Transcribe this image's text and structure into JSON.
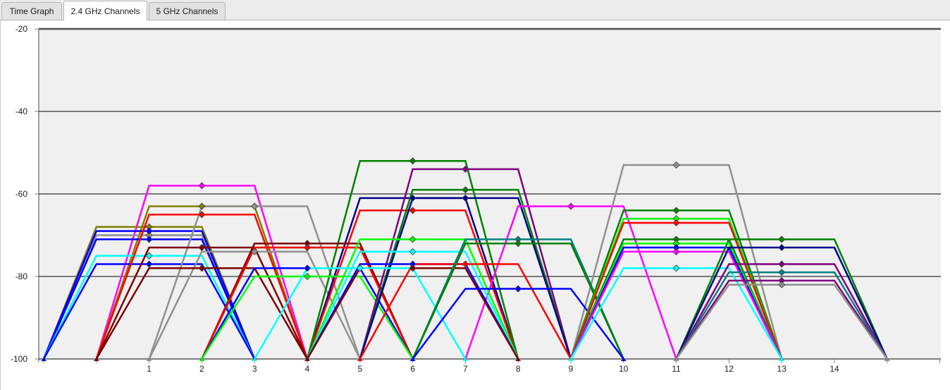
{
  "tabs": [
    {
      "label": "Time Graph",
      "active": false
    },
    {
      "label": "2.4 GHz Channels",
      "active": true
    },
    {
      "label": "5 GHz Channels",
      "active": false
    }
  ],
  "chart_data": {
    "type": "line",
    "title": "",
    "xlabel": "",
    "ylabel": "",
    "x_ticks": [
      1,
      2,
      3,
      4,
      5,
      6,
      7,
      8,
      9,
      10,
      11,
      12,
      13,
      14
    ],
    "y_ticks": [
      -20,
      -40,
      -60,
      -80,
      -100
    ],
    "ylim": [
      -100,
      -20
    ],
    "xlim": [
      -1,
      16
    ],
    "grid": "horizontal",
    "background_color": "#f0f0f0",
    "series": [
      {
        "color": "#ff00ff",
        "level": -58,
        "center": 2
      },
      {
        "color": "#808000",
        "level": -63,
        "center": 2
      },
      {
        "color": "#808000",
        "level": -68,
        "center": 1
      },
      {
        "color": "#909090",
        "level": -70,
        "center": 1
      },
      {
        "color": "#0000ff",
        "level": -69,
        "center": 1
      },
      {
        "color": "#0000ff",
        "level": -71,
        "center": 1
      },
      {
        "color": "#00ff00",
        "level": -75,
        "center": 1
      },
      {
        "color": "#00ffff",
        "level": -75,
        "center": 1
      },
      {
        "color": "#0000ff",
        "level": -77,
        "center": 1
      },
      {
        "color": "#909090",
        "level": -63,
        "center": 3
      },
      {
        "color": "#ff0000",
        "level": -65,
        "center": 2
      },
      {
        "color": "#909090",
        "level": -74,
        "center": 3
      },
      {
        "color": "#7f0000",
        "level": -73,
        "center": 2
      },
      {
        "color": "#7f0000",
        "level": -78,
        "center": 2
      },
      {
        "color": "#00008b",
        "level": -61,
        "center": 6
      },
      {
        "color": "#ff0000",
        "level": -64,
        "center": 6
      },
      {
        "color": "#00ff00",
        "level": -73,
        "center": 4
      },
      {
        "color": "#008000",
        "level": -52,
        "center": 6
      },
      {
        "color": "#7f0000",
        "level": -72,
        "center": 4
      },
      {
        "color": "#ff0000",
        "level": -73,
        "center": 4
      },
      {
        "color": "#0000ff",
        "level": -78,
        "center": 4
      },
      {
        "color": "#00ff00",
        "level": -80,
        "center": 4
      },
      {
        "color": "#800080",
        "level": -54,
        "center": 7
      },
      {
        "color": "#008000",
        "level": -59,
        "center": 7
      },
      {
        "color": "#00008b",
        "level": -61,
        "center": 7
      },
      {
        "color": "#ff00ff",
        "level": -63,
        "center": 9
      },
      {
        "color": "#00ff00",
        "level": -71,
        "center": 6
      },
      {
        "color": "#00ffff",
        "level": -74,
        "center": 6
      },
      {
        "color": "#0000ff",
        "level": -77,
        "center": 6
      },
      {
        "color": "#ff0000",
        "level": -77,
        "center": 7
      },
      {
        "color": "#7f0000",
        "level": -78,
        "center": 6
      },
      {
        "color": "#00ffff",
        "level": -78,
        "center": 5
      },
      {
        "color": "#909090",
        "level": -53,
        "center": 11
      },
      {
        "color": "#008080",
        "level": -71,
        "center": 8
      },
      {
        "color": "#008000",
        "level": -72,
        "center": 8
      },
      {
        "color": "#0000ff",
        "level": -83,
        "center": 8
      },
      {
        "color": "#008000",
        "level": -64,
        "center": 11
      },
      {
        "color": "#00ff00",
        "level": -66,
        "center": 11
      },
      {
        "color": "#ff0000",
        "level": -67,
        "center": 11
      },
      {
        "color": "#008000",
        "level": -71,
        "center": 11
      },
      {
        "color": "#00ff00",
        "level": -72,
        "center": 11
      },
      {
        "color": "#0000ff",
        "level": -73,
        "center": 11
      },
      {
        "color": "#ff00ff",
        "level": -74,
        "center": 11
      },
      {
        "color": "#00ffff",
        "level": -78,
        "center": 11
      },
      {
        "color": "#008000",
        "level": -71,
        "center": 13
      },
      {
        "color": "#00008b",
        "level": -73,
        "center": 13
      },
      {
        "color": "#800080",
        "level": -77,
        "center": 13
      },
      {
        "color": "#008080",
        "level": -79,
        "center": 13
      },
      {
        "color": "#800080",
        "level": -81,
        "center": 13
      },
      {
        "color": "#909090",
        "level": -82,
        "center": 13
      }
    ]
  }
}
